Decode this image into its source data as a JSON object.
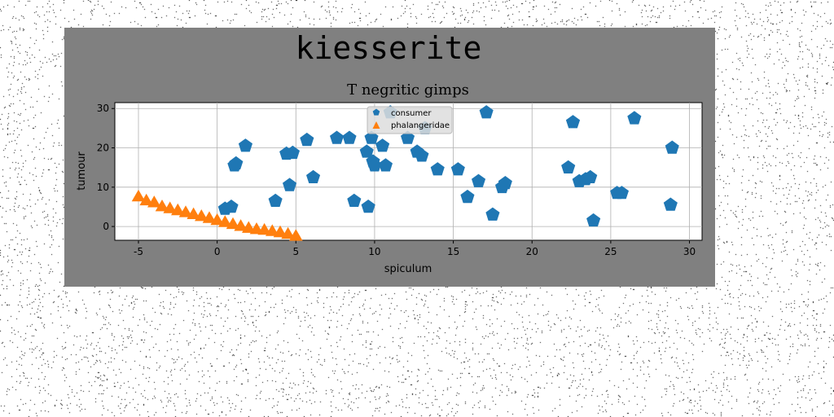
{
  "chart_data": {
    "type": "scatter",
    "suptitle": "kiesserite",
    "title": "T negritic gimps",
    "xlabel": "spiculum",
    "ylabel": "tumour",
    "xlim": [
      -6.5,
      30.8
    ],
    "ylim": [
      -3.5,
      31.5
    ],
    "xticks": [
      -5,
      0,
      5,
      10,
      15,
      20,
      25,
      30
    ],
    "yticks": [
      0,
      10,
      20,
      30
    ],
    "grid": true,
    "legend_position": "upper-center",
    "colors": {
      "figure_bg": "#808080",
      "axes_bg": "#ffffff",
      "consumer": "#1f77b4",
      "phalangeridae": "#ff7f0e"
    },
    "series": [
      {
        "name": "consumer",
        "marker": "pentagon",
        "x": [
          0.5,
          0.9,
          1.1,
          1.2,
          1.8,
          3.7,
          4.4,
          4.6,
          4.8,
          5.7,
          6.1,
          7.6,
          8.4,
          8.7,
          9.5,
          9.6,
          9.8,
          9.9,
          10.0,
          10.5,
          10.7,
          11.0,
          12.1,
          12.7,
          13.0,
          13.2,
          14.0,
          15.3,
          15.9,
          16.6,
          17.1,
          17.5,
          18.1,
          18.3,
          22.3,
          22.6,
          23.0,
          23.4,
          23.7,
          23.9,
          25.4,
          25.7,
          26.5,
          28.8,
          28.9
        ],
        "y": [
          4.5,
          5.0,
          15.5,
          16.0,
          20.5,
          6.5,
          18.5,
          10.5,
          18.7,
          22.0,
          12.5,
          22.5,
          22.5,
          6.5,
          19.0,
          5.0,
          22.5,
          16.5,
          15.5,
          20.5,
          15.5,
          29.0,
          22.5,
          19.0,
          18.0,
          25.0,
          14.5,
          14.5,
          7.5,
          11.5,
          29.0,
          3.0,
          10.0,
          11.0,
          15.0,
          26.5,
          11.5,
          12.0,
          12.5,
          1.5,
          8.5,
          8.5,
          27.5,
          5.5,
          20.0
        ]
      },
      {
        "name": "phalangeridae",
        "marker": "triangle",
        "x": [
          -5.0,
          -4.5,
          -4.0,
          -3.5,
          -3.0,
          -2.5,
          -2.0,
          -1.5,
          -1.0,
          -0.5,
          0.0,
          0.5,
          1.0,
          1.5,
          2.0,
          2.5,
          3.0,
          3.5,
          4.0,
          4.5,
          5.0
        ],
        "y": [
          7.5,
          6.5,
          6.0,
          5.0,
          4.5,
          4.0,
          3.5,
          3.0,
          2.5,
          2.0,
          1.5,
          1.0,
          0.5,
          0.0,
          -0.5,
          -0.8,
          -1.0,
          -1.3,
          -1.6,
          -2.0,
          -2.5
        ]
      }
    ]
  }
}
